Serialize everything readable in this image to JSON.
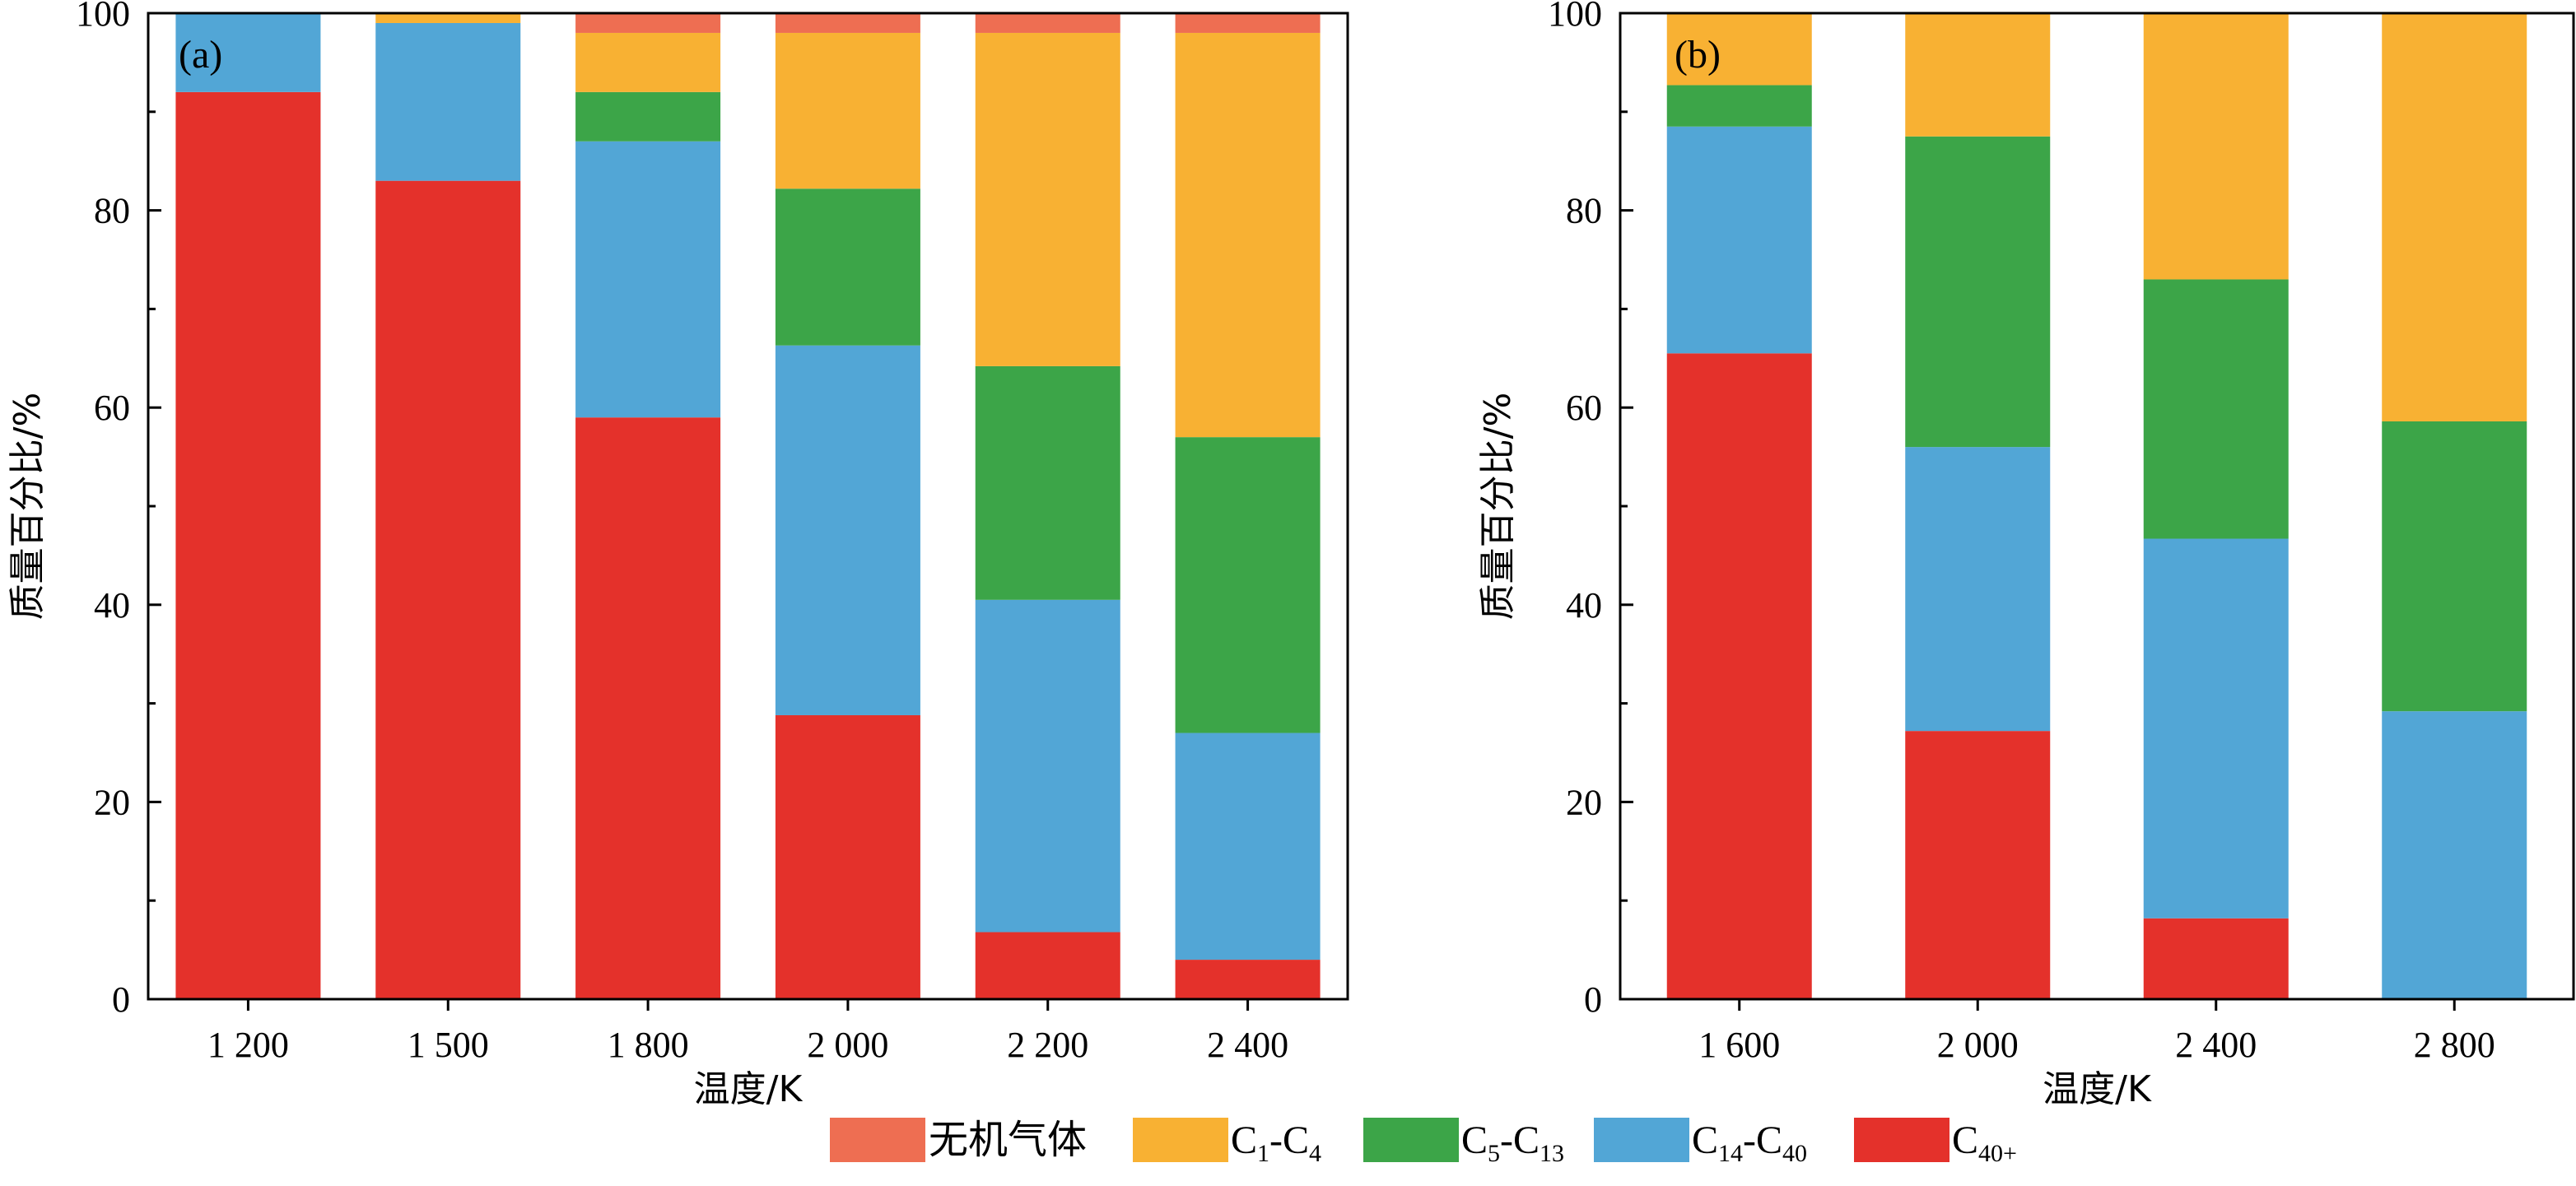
{
  "legend": [
    {
      "key": "inorganic",
      "label": "无机气体",
      "color": "#ee6e52"
    },
    {
      "key": "c1c4",
      "label": "C",
      "sub1": "1",
      "mid": "-C",
      "sub2": "4",
      "color": "#f8b133"
    },
    {
      "key": "c5c13",
      "label": "C",
      "sub1": "5",
      "mid": "-C",
      "sub2": "13",
      "color": "#3ca548"
    },
    {
      "key": "c14c40",
      "label": "C",
      "sub1": "14",
      "mid": "-C",
      "sub2": "40",
      "color": "#52a6d6"
    },
    {
      "key": "c40p",
      "label": "C",
      "sub1": "40+",
      "mid": "",
      "sub2": "",
      "color": "#e4312b"
    }
  ],
  "chart_data": [
    {
      "type": "bar",
      "stacked": true,
      "panel_label": "(a)",
      "xlabel": "温度/K",
      "ylabel": "质量百分比/%",
      "ylim": [
        0,
        100
      ],
      "yticks": [
        "0",
        "20",
        "40",
        "60",
        "80",
        "100"
      ],
      "categories": [
        "1 200",
        "1 500",
        "1 800",
        "2 000",
        "2 200",
        "2 400"
      ],
      "series": [
        {
          "name": "C40+",
          "key": "c40p",
          "values": [
            92,
            83,
            59,
            28.8,
            6.8,
            4.0
          ]
        },
        {
          "name": "C14-C40",
          "key": "c14c40",
          "values": [
            8,
            16,
            28,
            37.5,
            33.7,
            23.0
          ]
        },
        {
          "name": "C5-C13",
          "key": "c5c13",
          "values": [
            0,
            0,
            5,
            15.9,
            23.7,
            30.0
          ]
        },
        {
          "name": "C1-C4",
          "key": "c1c4",
          "values": [
            0,
            1,
            6,
            15.8,
            33.8,
            41.0
          ]
        },
        {
          "name": "无机气体",
          "key": "inorganic",
          "values": [
            0,
            0,
            2,
            2,
            2,
            2
          ]
        }
      ]
    },
    {
      "type": "bar",
      "stacked": true,
      "panel_label": "(b)",
      "xlabel": "温度/K",
      "ylabel": "质量百分比/%",
      "ylim": [
        0,
        100
      ],
      "yticks": [
        "0",
        "20",
        "40",
        "60",
        "80",
        "100"
      ],
      "categories": [
        "1 600",
        "2 000",
        "2 400",
        "2 800"
      ],
      "series": [
        {
          "name": "C40+",
          "key": "c40p",
          "values": [
            65.5,
            27.2,
            8.2,
            0
          ]
        },
        {
          "name": "C14-C40",
          "key": "c14c40",
          "values": [
            23.0,
            28.8,
            38.5,
            29.2
          ]
        },
        {
          "name": "C5-C13",
          "key": "c5c13",
          "values": [
            4.2,
            31.5,
            26.3,
            29.4
          ]
        },
        {
          "name": "C1-C4",
          "key": "c1c4",
          "values": [
            7.3,
            12.5,
            27.0,
            41.4
          ]
        },
        {
          "name": "无机气体",
          "key": "inorganic",
          "values": [
            0,
            0,
            0,
            0
          ]
        }
      ]
    }
  ]
}
